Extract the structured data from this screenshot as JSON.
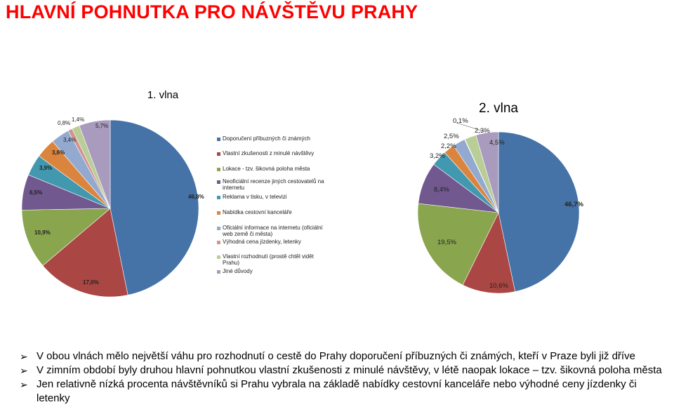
{
  "title": "HLAVNÍ POHNUTKA PRO NÁVŠTĚVU PRAHY",
  "legend": [
    {
      "label": "Doporučení příbuzných či známých",
      "color": "#4572a7"
    },
    {
      "label": "Vlastní zkušenosti z minulé návštěvy",
      "color": "#aa4643"
    },
    {
      "label": "Lokace - tzv. šikovná poloha města",
      "color": "#89a54e"
    },
    {
      "label": "Neoficiální recenze jiných cestovatelů na internetu",
      "color": "#71588f"
    },
    {
      "label": "Reklama v tisku, v televizi",
      "color": "#4198af"
    },
    {
      "label": "Nabídka cestovní kanceláře",
      "color": "#db843d"
    },
    {
      "label": "Oficiální informace na internetu (oficiální web země či města)",
      "color": "#93a9cf"
    },
    {
      "label": "Výhodná cena jízdenky, letenky",
      "color": "#d19392"
    },
    {
      "label": "Vlastní rozhodnutí (prostě chtěl vidět Prahu)",
      "color": "#b9cd96"
    },
    {
      "label": "Jiné důvody",
      "color": "#a99bbd"
    }
  ],
  "chart_data": [
    {
      "type": "pie",
      "title": "1. vlna",
      "categories": [
        "Doporučení příbuzných či známých",
        "Vlastní zkušenosti z minulé návštěvy",
        "Lokace - tzv. šikovná poloha města",
        "Neoficiální recenze jiných cestovatelů na internetu",
        "Reklama v tisku, v televizi",
        "Nabídka cestovní kanceláře",
        "Oficiální informace na internetu (oficiální web země či města)",
        "Výhodná cena jízdenky, letenky",
        "Vlastní rozhodnutí (prostě chtěl vidět Prahu)",
        "Jiné důvody"
      ],
      "values": [
        46.8,
        17.0,
        10.9,
        6.5,
        3.9,
        3.6,
        3.4,
        0.8,
        1.4,
        5.7
      ],
      "labels": [
        "46,8%",
        "17,0%",
        "10,9%",
        "6,5%",
        "3,9%",
        "3,6%",
        "3,4%",
        "0,8%",
        "1,4%",
        "5,7%"
      ]
    },
    {
      "type": "pie",
      "title": "2. vlna",
      "categories": [
        "Doporučení příbuzných či známých",
        "Vlastní zkušenosti z minulé návštěvy",
        "Lokace - tzv. šikovná poloha města",
        "Neoficiální recenze jiných cestovatelů na internetu",
        "Reklama v tisku, v televizi",
        "Nabídka cestovní kanceláře",
        "Oficiální informace na internetu (oficiální web země či města)",
        "Výhodná cena jízdenky, letenky",
        "Vlastní rozhodnutí (prostě chtěl vidět Prahu)",
        "Jiné důvody"
      ],
      "values": [
        46.7,
        10.6,
        19.5,
        8.4,
        3.2,
        2.2,
        2.5,
        0.1,
        2.3,
        4.5
      ],
      "labels": [
        "46,7%",
        "10,6%",
        "19,5%",
        "8,4%",
        "3,2%",
        "2,2%",
        "2,5%",
        "0,1%",
        "2,3%",
        "4,5%"
      ]
    }
  ],
  "bullets": [
    "V obou vlnách mělo největší váhu pro rozhodnutí o cestě do Prahy doporučení příbuzných či známých, kteří v Praze byli již dříve",
    "V zimním období byly druhou hlavní pohnutkou vlastní zkušenosti z minulé návštěvy, v létě naopak lokace – tzv. šikovná poloha města",
    "Jen relativně nízká procenta návštěvníků si Prahu vybrala na základě nabídky cestovní kanceláře nebo výhodné ceny jízdenky či letenky"
  ]
}
